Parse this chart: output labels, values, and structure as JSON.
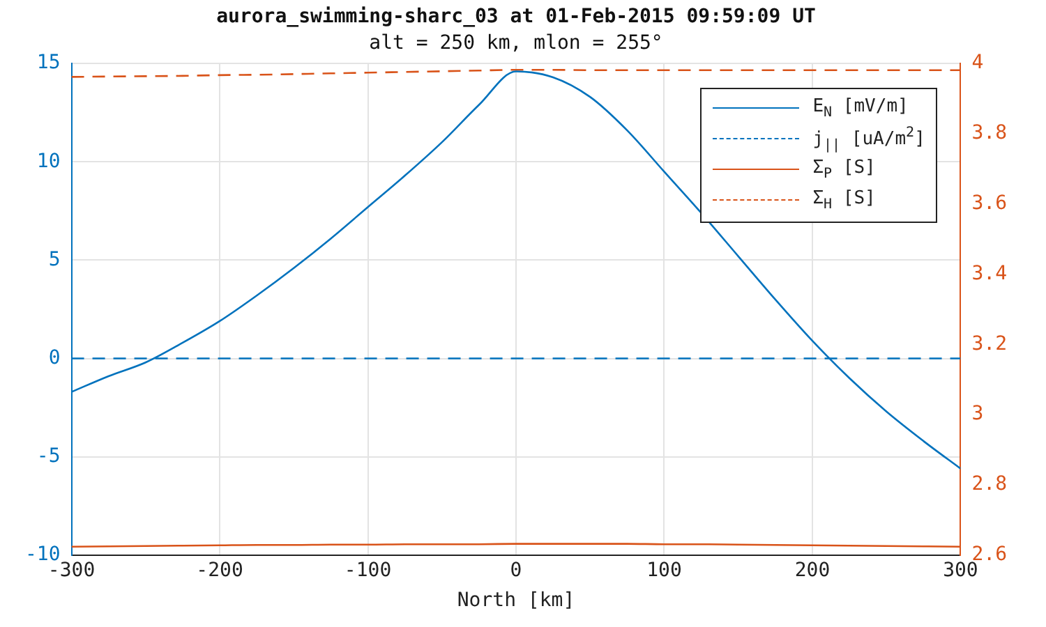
{
  "chart_data": {
    "type": "line",
    "title": "aurora_swimming-sharc_03 at 01-Feb-2015 09:59:09 UT",
    "subtitle": "alt = 250 km, mlon = 255°",
    "xlabel": "North [km]",
    "x": [
      -300,
      -275,
      -250,
      -225,
      -200,
      -175,
      -150,
      -125,
      -100,
      -75,
      -50,
      -25,
      0,
      25,
      50,
      75,
      100,
      125,
      150,
      175,
      200,
      225,
      250,
      275,
      300
    ],
    "xlim": [
      -300,
      300
    ],
    "xticks": [
      -300,
      -200,
      -100,
      0,
      100,
      200,
      300
    ],
    "ylim": [
      -10,
      15
    ],
    "yticks": [
      -10,
      -5,
      0,
      5,
      10,
      15
    ],
    "y2lim": [
      2.6,
      4
    ],
    "y2ticks": [
      2.6,
      2.8,
      3,
      3.2,
      3.4,
      3.6,
      3.8,
      4
    ],
    "grid": true,
    "legend": "top right",
    "series": [
      {
        "name": "E$_{N}$ [mV/m]",
        "color": "#0072bd",
        "line_style": "solid",
        "values": [
          -1.7,
          -0.9,
          -0.2,
          0.8,
          1.9,
          3.2,
          4.6,
          6.1,
          7.7,
          9.3,
          11.0,
          12.9,
          14.6,
          14.3,
          13.3,
          11.6,
          9.5,
          7.4,
          5.2,
          3.0,
          0.9,
          -1.0,
          -2.7,
          -4.2,
          -5.6
        ]
      },
      {
        "name": "j$_{||}$ [uA/m$^{2}$]",
        "color": "#0072bd",
        "line_style": "dashed",
        "values": [
          0,
          0,
          0,
          0,
          0,
          0,
          0,
          0,
          0,
          0,
          0,
          0,
          0,
          0,
          0,
          0,
          0,
          0,
          0,
          0,
          0,
          0,
          0,
          0,
          0
        ]
      },
      {
        "name": "Σ$_{P}$ [S]",
        "color": "#d95319",
        "line_style": "solid",
        "axis": "y2",
        "values": [
          2.624,
          2.625,
          2.626,
          2.627,
          2.628,
          2.629,
          2.629,
          2.63,
          2.63,
          2.631,
          2.631,
          2.631,
          2.632,
          2.632,
          2.632,
          2.632,
          2.631,
          2.631,
          2.63,
          2.629,
          2.628,
          2.627,
          2.626,
          2.625,
          2.624
        ]
      },
      {
        "name": "Σ$_{H}$ [S]",
        "color": "#d95319",
        "line_style": "dashed",
        "axis": "y2",
        "values": [
          3.962,
          3.963,
          3.964,
          3.965,
          3.967,
          3.968,
          3.97,
          3.972,
          3.974,
          3.976,
          3.978,
          3.98,
          3.982,
          3.982,
          3.981,
          3.981,
          3.981,
          3.981,
          3.981,
          3.981,
          3.981,
          3.981,
          3.981,
          3.981,
          3.981
        ]
      }
    ]
  }
}
